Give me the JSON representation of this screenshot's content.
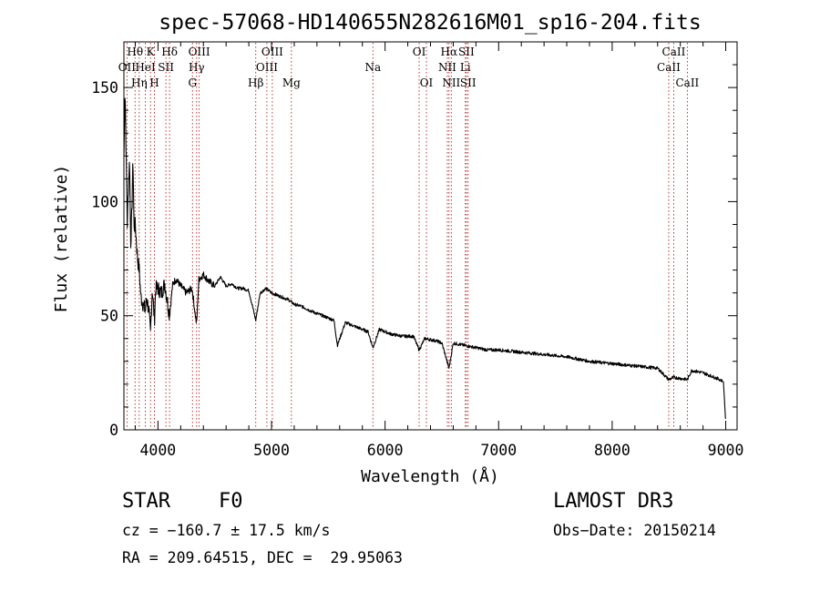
{
  "chart_data": {
    "type": "line",
    "title": "spec-57068-HD140655N282616M01_sp16-204.fits",
    "xlabel": "Wavelength (Å)",
    "ylabel": "Flux (relative)",
    "xlim": [
      3700,
      9100
    ],
    "ylim": [
      0,
      170
    ],
    "xticks": [
      4000,
      5000,
      6000,
      7000,
      8000,
      9000
    ],
    "xtick_labels": [
      "4000",
      "5000",
      "6000",
      "7000",
      "8000",
      "9000"
    ],
    "yticks": [
      0,
      50,
      100,
      150
    ],
    "ytick_labels": [
      "0",
      "50",
      "100",
      "150"
    ],
    "grid": false,
    "series": [
      {
        "name": "spectrum",
        "x": [
          3700,
          3710,
          3730,
          3740,
          3750,
          3760,
          3770,
          3780,
          3790,
          3800,
          3820,
          3835,
          3850,
          3870,
          3889,
          3900,
          3920,
          3934,
          3950,
          3969,
          3980,
          4000,
          4030,
          4060,
          4102,
          4130,
          4160,
          4200,
          4250,
          4300,
          4340,
          4360,
          4400,
          4450,
          4500,
          4550,
          4600,
          4650,
          4700,
          4750,
          4800,
          4861,
          4900,
          4950,
          5000,
          5050,
          5100,
          5150,
          5200,
          5270,
          5350,
          5450,
          5550,
          5580,
          5650,
          5750,
          5850,
          5893,
          5950,
          6050,
          6150,
          6250,
          6300,
          6350,
          6450,
          6500,
          6563,
          6600,
          6700,
          6800,
          6900,
          7000,
          7200,
          7400,
          7600,
          7800,
          8000,
          8200,
          8400,
          8498,
          8542,
          8662,
          8700,
          8800,
          8900,
          8950,
          8980,
          9000
        ],
        "y": [
          120,
          150,
          90,
          108,
          118,
          82,
          95,
          118,
          88,
          90,
          75,
          70,
          58,
          55,
          52,
          58,
          52,
          42,
          62,
          48,
          62,
          62,
          60,
          64,
          50,
          64,
          66,
          63,
          60,
          62,
          46,
          66,
          68,
          65,
          63,
          67,
          63,
          64,
          62,
          62,
          61,
          48,
          60,
          62,
          60,
          59,
          58,
          57,
          55,
          54,
          52,
          50,
          48,
          37,
          47,
          45,
          43,
          36,
          44,
          42,
          41,
          41,
          35,
          40,
          39,
          38,
          27,
          38,
          37,
          36,
          35,
          35,
          34,
          33,
          32,
          30,
          29,
          28,
          27,
          22,
          23,
          22,
          26,
          25,
          23,
          22,
          21,
          3
        ]
      }
    ],
    "line_markers": [
      {
        "label": "Hθ",
        "wavelength": 3798,
        "row": 1
      },
      {
        "label": "OII",
        "wavelength": 3727,
        "row": 2
      },
      {
        "label": "Hη",
        "wavelength": 3835,
        "row": 3
      },
      {
        "label": "K",
        "wavelength": 3934,
        "row": 1
      },
      {
        "label": "HeI",
        "wavelength": 3889,
        "row": 2
      },
      {
        "label": "H",
        "wavelength": 3969,
        "row": 3
      },
      {
        "label": "Hδ",
        "wavelength": 4102,
        "row": 1
      },
      {
        "label": "SII",
        "wavelength": 4070,
        "row": 2
      },
      {
        "label": "OIII",
        "wavelength": 4363,
        "row": 1
      },
      {
        "label": "Hγ",
        "wavelength": 4340,
        "row": 2
      },
      {
        "label": "G",
        "wavelength": 4304,
        "row": 3
      },
      {
        "label": "Hβ",
        "wavelength": 4861,
        "row": 3
      },
      {
        "label": "OIII",
        "wavelength": 5007,
        "row": 1
      },
      {
        "label": "OIII",
        "wavelength": 4959,
        "row": 2
      },
      {
        "label": "Mg",
        "wavelength": 5175,
        "row": 3
      },
      {
        "label": "Na",
        "wavelength": 5893,
        "row": 2
      },
      {
        "label": "OI",
        "wavelength": 6300,
        "row": 1
      },
      {
        "label": "OI",
        "wavelength": 6364,
        "row": 3
      },
      {
        "label": "Hα",
        "wavelength": 6563,
        "row": 1
      },
      {
        "label": "NII",
        "wavelength": 6548,
        "row": 2
      },
      {
        "label": "NII",
        "wavelength": 6583,
        "row": 3
      },
      {
        "label": "SII",
        "wavelength": 6716,
        "row": 1
      },
      {
        "label": "Li",
        "wavelength": 6707,
        "row": 2
      },
      {
        "label": "SII",
        "wavelength": 6731,
        "row": 3
      },
      {
        "label": "CaII",
        "wavelength": 8542,
        "row": 1
      },
      {
        "label": "CaII",
        "wavelength": 8498,
        "row": 2
      },
      {
        "label": "CaII",
        "wavelength": 8662,
        "row": 3
      }
    ]
  },
  "info": {
    "object_class": "STAR",
    "subclass": "F0",
    "survey": "LAMOST DR3",
    "velocity": "cz = −160.7 ± 17.5 km/s",
    "obs_date": "Obs−Date: 20150214",
    "coords": "RA = 209.64515, DEC =  29.95063"
  }
}
